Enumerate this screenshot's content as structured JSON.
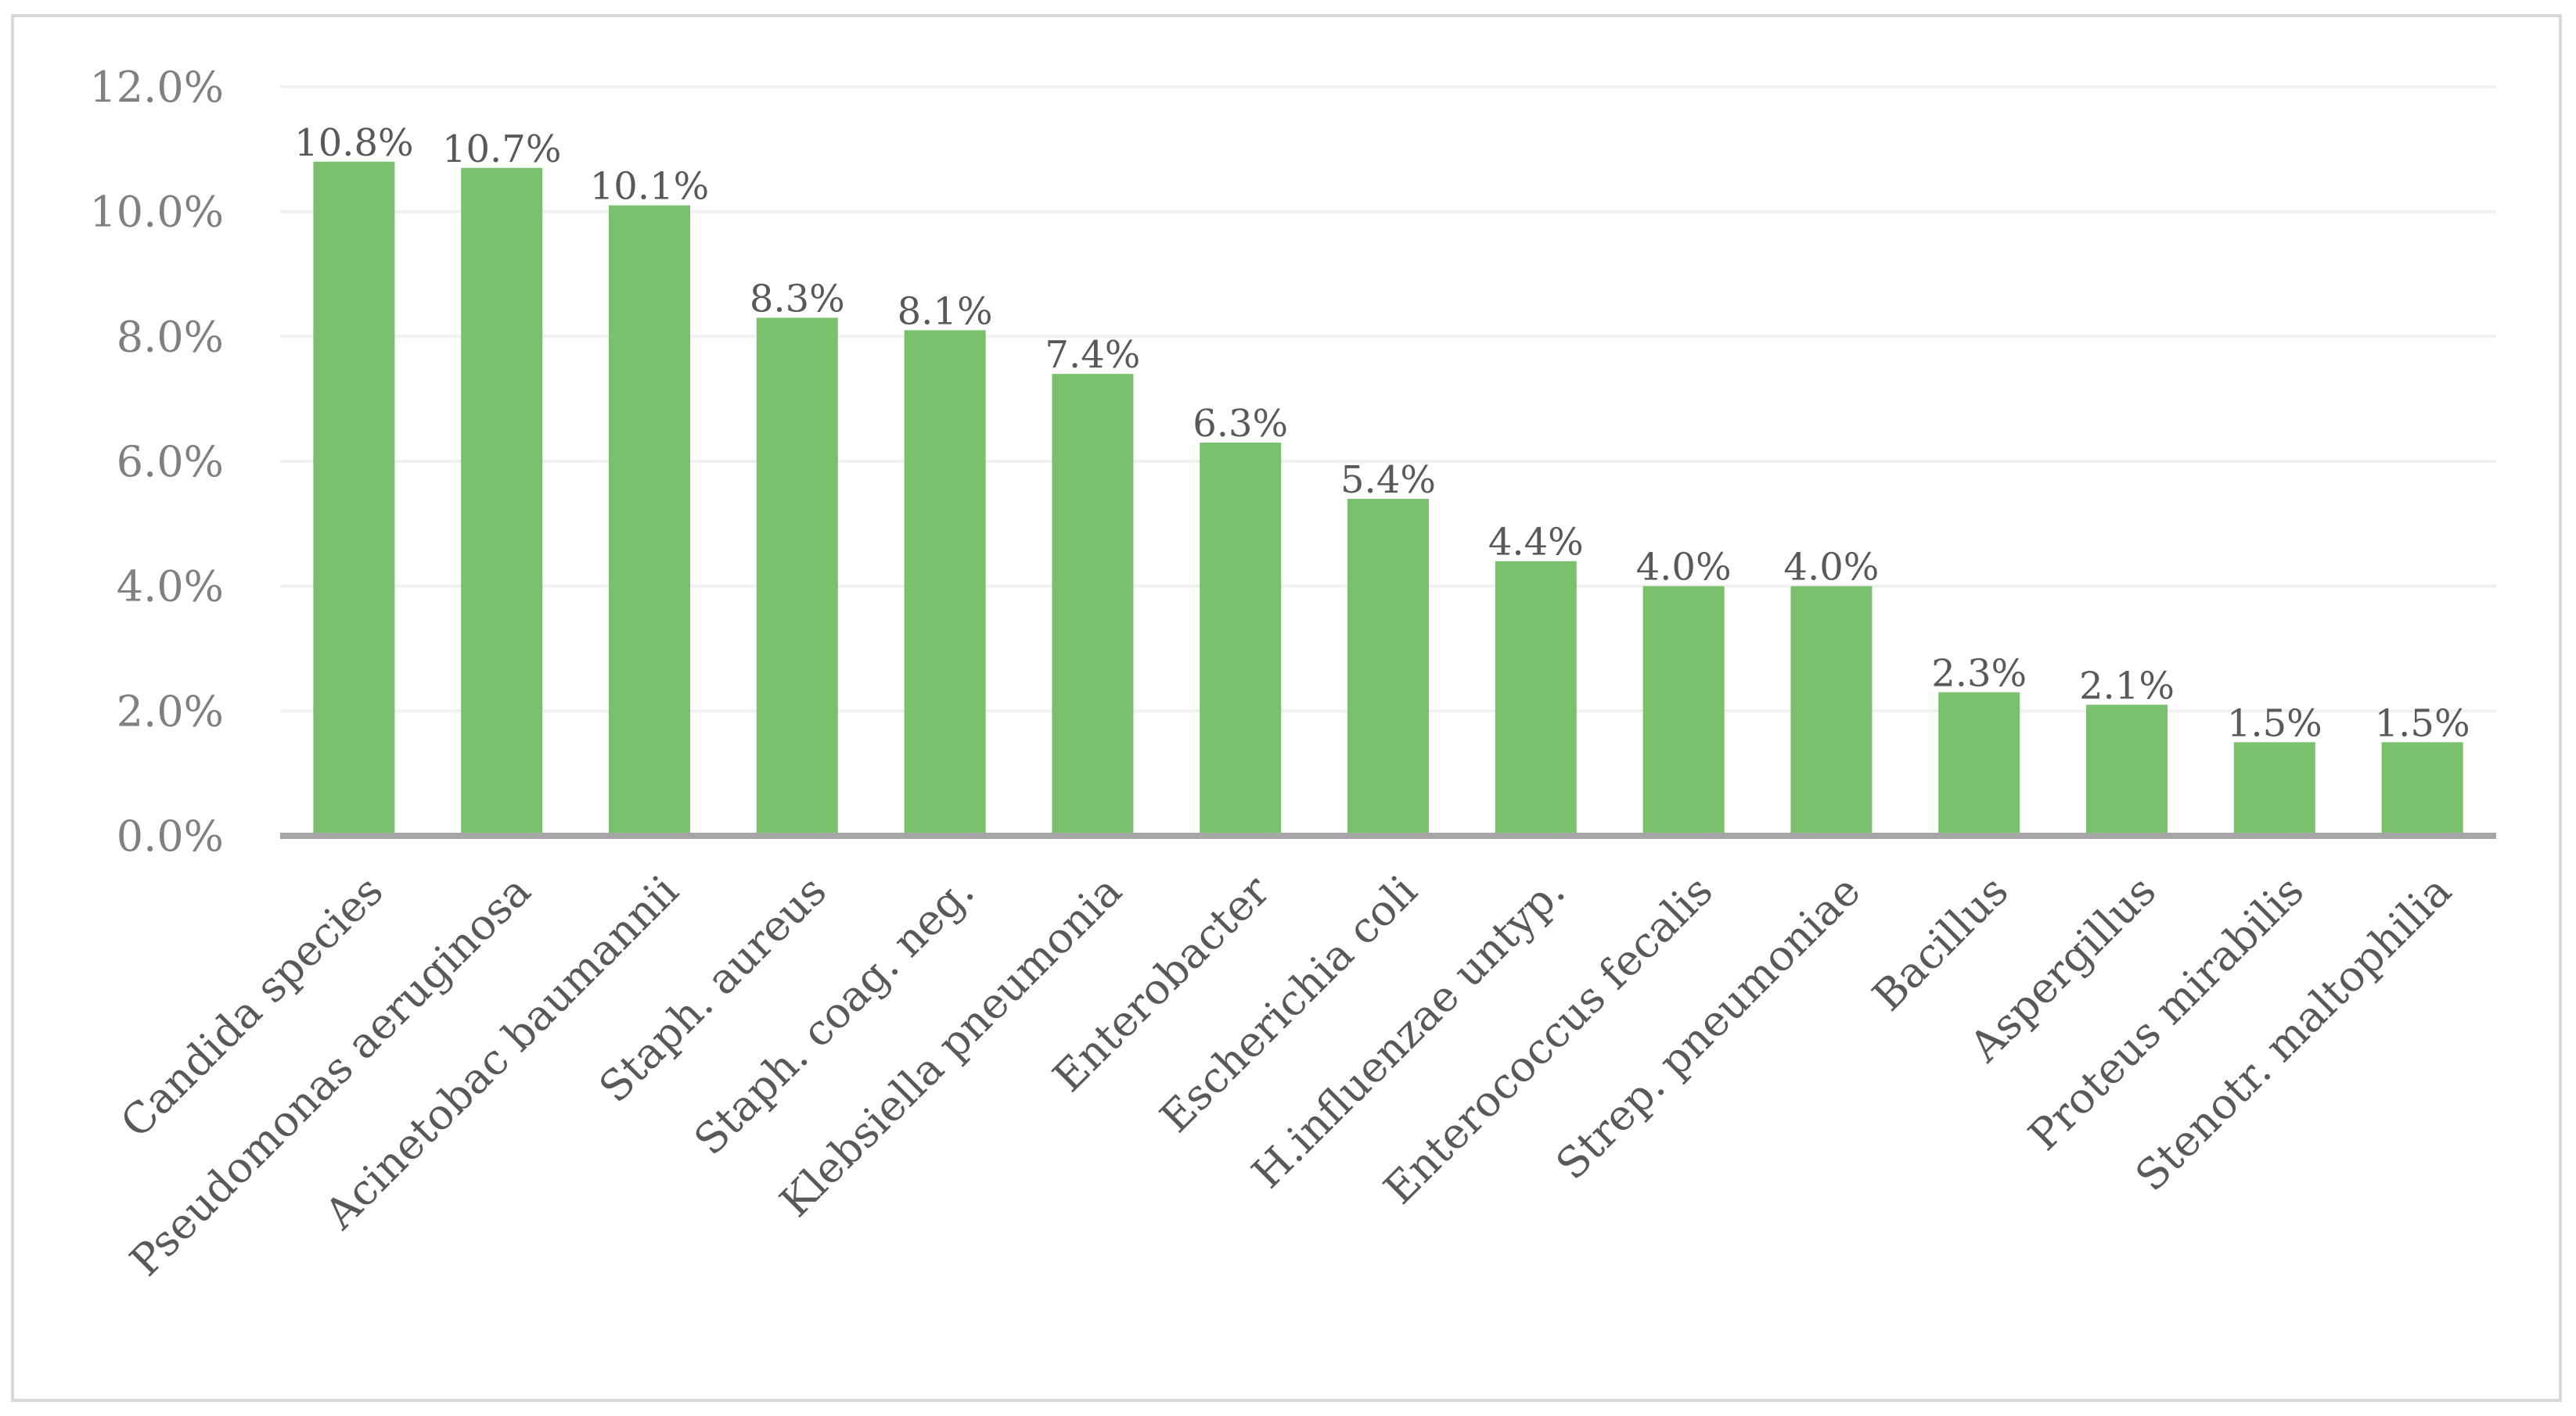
{
  "chart_data": {
    "type": "bar",
    "categories": [
      "Candida species",
      "Pseudomonas aeruginosa",
      "Acinetobac baumannii",
      "Staph. aureus",
      "Staph. coag. neg.",
      "Klebsiella pneumonia",
      "Enterobacter",
      "Escherichia coli",
      "H.influenzae untyp.",
      "Enterococcus fecalis",
      "Strep. pneumoniae",
      "Bacillus",
      "Aspergillus",
      "Proteus mirabilis",
      "Stenotr. maltophilia"
    ],
    "values": [
      10.8,
      10.7,
      10.1,
      8.3,
      8.1,
      7.4,
      6.3,
      5.4,
      4.4,
      4.0,
      4.0,
      2.3,
      2.1,
      1.5,
      1.5
    ],
    "data_labels": [
      "10.8%",
      "10.7%",
      "10.1%",
      "8.3%",
      "8.1%",
      "7.4%",
      "6.3%",
      "5.4%",
      "4.4%",
      "4.0%",
      "4.0%",
      "2.3%",
      "2.1%",
      "1.5%",
      "1.5%"
    ],
    "yticks": [
      0,
      2,
      4,
      6,
      8,
      10,
      12
    ],
    "ytick_labels": [
      "0.0%",
      "2.0%",
      "4.0%",
      "6.0%",
      "8.0%",
      "10.0%",
      "12.0%"
    ],
    "ylim": [
      0,
      12
    ],
    "grid": true,
    "legend": "none",
    "bar_color": "#7ac16d",
    "title": "",
    "xlabel": "",
    "ylabel": ""
  }
}
